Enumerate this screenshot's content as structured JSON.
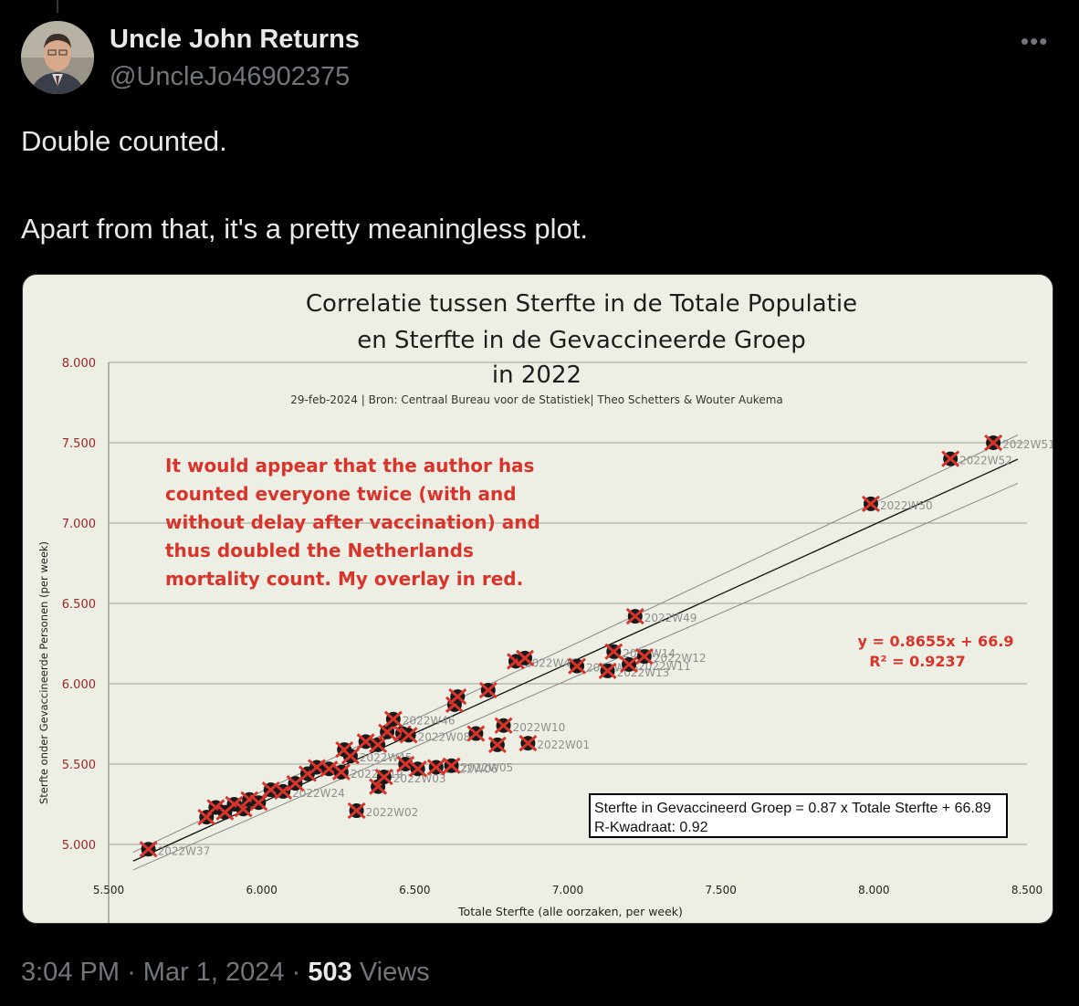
{
  "tweet": {
    "author_name": "Uncle John Returns",
    "handle": "@UncleJo46902375",
    "more_icon": "more-dots-icon",
    "line1": "Double counted.",
    "line2": "Apart from that, it's a pretty meaningless plot.",
    "time": "3:04 PM",
    "sep": "·",
    "date": "Mar 1, 2024",
    "views_count": "503",
    "views_label": "Views"
  },
  "chart_data": {
    "type": "scatter",
    "title_lines": [
      "Correlatie tussen Sterfte in de Totale Populatie",
      "en Sterfte in de Gevaccineerde Groep",
      "in 2022"
    ],
    "subtitle": "29-feb-2024 | Bron: Centraal Bureau voor de Statistiek| Theo Schetters & Wouter Aukema",
    "xlabel": "Totale Sterfte (alle oorzaken, per week)",
    "ylabel": "Sterfte onder Gevaccineerde Personen (per week)",
    "xlim": [
      5500,
      8500
    ],
    "ylim": [
      4500,
      8000
    ],
    "x_ticks": [
      5500,
      6000,
      6500,
      7000,
      7500,
      8000,
      8500
    ],
    "x_tick_labels": [
      "5.500",
      "6.000",
      "6.500",
      "7.000",
      "7.500",
      "8.000",
      "8.500"
    ],
    "y_ticks": [
      5000,
      5500,
      6000,
      6500,
      7000,
      7500,
      8000
    ],
    "y_tick_labels": [
      "5.000",
      "5.500",
      "6.000",
      "6.500",
      "7.000",
      "7.500",
      "8.000"
    ],
    "y_tick_bottom_partial": "4500",
    "grid": true,
    "trendline": {
      "slope": 0.8655,
      "intercept": 66.9
    },
    "equation": "y = 0.8655x + 66.9",
    "r2": "R² = 0.9237",
    "box_line1": "Sterfte in Gevaccineerd Groep = 0.87 x Totale Sterfte + 66.89",
    "box_line2": "R-Kwadraat: 0.92",
    "points": [
      {
        "x": 5630,
        "y": 4970,
        "label": "2022W37"
      },
      {
        "x": 5820,
        "y": 5170
      },
      {
        "x": 5850,
        "y": 5230
      },
      {
        "x": 5880,
        "y": 5200
      },
      {
        "x": 5910,
        "y": 5250
      },
      {
        "x": 5940,
        "y": 5220
      },
      {
        "x": 5960,
        "y": 5280
      },
      {
        "x": 5990,
        "y": 5260
      },
      {
        "x": 6030,
        "y": 5340
      },
      {
        "x": 6070,
        "y": 5330,
        "label": "2022W24"
      },
      {
        "x": 6110,
        "y": 5380
      },
      {
        "x": 6150,
        "y": 5440
      },
      {
        "x": 6180,
        "y": 5480
      },
      {
        "x": 6220,
        "y": 5470
      },
      {
        "x": 6260,
        "y": 5450,
        "label": "2022W19"
      },
      {
        "x": 6270,
        "y": 5590
      },
      {
        "x": 6290,
        "y": 5550,
        "label": "2022W45"
      },
      {
        "x": 6340,
        "y": 5640
      },
      {
        "x": 6380,
        "y": 5620
      },
      {
        "x": 6410,
        "y": 5700
      },
      {
        "x": 6430,
        "y": 5780,
        "label": "2022W46"
      },
      {
        "x": 6460,
        "y": 5690
      },
      {
        "x": 6480,
        "y": 5680,
        "label": "2022W08"
      },
      {
        "x": 6380,
        "y": 5360
      },
      {
        "x": 6400,
        "y": 5420,
        "label": "2022W03"
      },
      {
        "x": 6310,
        "y": 5210,
        "label": "2022W02"
      },
      {
        "x": 6470,
        "y": 5500
      },
      {
        "x": 6510,
        "y": 5470
      },
      {
        "x": 6570,
        "y": 5480,
        "label": "2022W06"
      },
      {
        "x": 6620,
        "y": 5490,
        "label": "2022W05"
      },
      {
        "x": 6630,
        "y": 5870
      },
      {
        "x": 6640,
        "y": 5920
      },
      {
        "x": 6700,
        "y": 5690
      },
      {
        "x": 6740,
        "y": 5960
      },
      {
        "x": 6770,
        "y": 5620
      },
      {
        "x": 6790,
        "y": 5740,
        "label": "2022W10"
      },
      {
        "x": 6830,
        "y": 6140,
        "label": "2022W47"
      },
      {
        "x": 6860,
        "y": 6160
      },
      {
        "x": 6870,
        "y": 5630,
        "label": "2022W01"
      },
      {
        "x": 7030,
        "y": 6110,
        "label": "2022W15"
      },
      {
        "x": 7130,
        "y": 6080,
        "label": "2022W13"
      },
      {
        "x": 7150,
        "y": 6200,
        "label": "2022W14"
      },
      {
        "x": 7200,
        "y": 6120,
        "label": "2022W11"
      },
      {
        "x": 7250,
        "y": 6170,
        "label": "2022W12"
      },
      {
        "x": 7220,
        "y": 6420,
        "label": "2022W49"
      },
      {
        "x": 7990,
        "y": 7120,
        "label": "2022W50"
      },
      {
        "x": 8250,
        "y": 7400,
        "label": "2022W52"
      },
      {
        "x": 8390,
        "y": 7500,
        "label": "2022W51"
      }
    ]
  },
  "overlay": {
    "lines": [
      "It would appear that the author has",
      "counted everyone twice (with and",
      "without delay after vaccination) and",
      "thus doubled the Netherlands",
      "mortality count. My overlay in red."
    ],
    "color": "#d9342b"
  }
}
